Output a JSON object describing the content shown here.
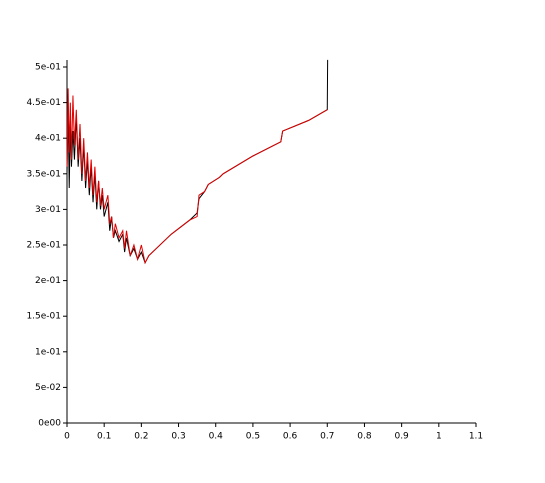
{
  "chart_data": {
    "type": "line",
    "x": [
      0,
      0.003,
      0.006,
      0.009,
      0.012,
      0.016,
      0.02,
      0.025,
      0.03,
      0.035,
      0.04,
      0.045,
      0.05,
      0.055,
      0.06,
      0.065,
      0.07,
      0.075,
      0.08,
      0.085,
      0.09,
      0.095,
      0.1,
      0.11,
      0.115,
      0.12,
      0.125,
      0.13,
      0.14,
      0.15,
      0.155,
      0.16,
      0.17,
      0.18,
      0.19,
      0.2,
      0.21,
      0.22,
      0.24,
      0.28,
      0.33,
      0.35,
      0.355,
      0.37,
      0.38,
      0.41,
      0.42,
      0.5,
      0.575,
      0.58,
      0.65,
      0.7,
      0.701
    ],
    "series": [
      {
        "color": "#000000",
        "values": [
          0.35,
          0.44,
          0.33,
          0.42,
          0.36,
          0.41,
          0.37,
          0.43,
          0.36,
          0.4,
          0.34,
          0.39,
          0.33,
          0.37,
          0.32,
          0.36,
          0.31,
          0.35,
          0.3,
          0.34,
          0.3,
          0.32,
          0.29,
          0.31,
          0.27,
          0.29,
          0.26,
          0.27,
          0.255,
          0.265,
          0.24,
          0.26,
          0.235,
          0.245,
          0.23,
          0.24,
          0.225,
          0.235,
          0.245,
          0.265,
          0.285,
          0.295,
          0.315,
          0.325,
          0.335,
          0.345,
          0.35,
          0.375,
          0.395,
          0.41,
          0.425,
          0.44,
          0.51
        ]
      },
      {
        "color": "#e00000",
        "values": [
          0.36,
          0.47,
          0.38,
          0.45,
          0.37,
          0.46,
          0.39,
          0.44,
          0.37,
          0.42,
          0.35,
          0.4,
          0.34,
          0.38,
          0.33,
          0.37,
          0.32,
          0.36,
          0.31,
          0.34,
          0.305,
          0.33,
          0.3,
          0.32,
          0.28,
          0.29,
          0.26,
          0.28,
          0.26,
          0.27,
          0.245,
          0.27,
          0.235,
          0.25,
          0.23,
          0.25,
          0.225,
          0.235,
          0.245,
          0.265,
          0.285,
          0.29,
          0.32,
          0.325,
          0.335,
          0.345,
          0.35,
          0.375,
          0.395,
          0.41,
          0.425,
          0.44,
          null
        ]
      }
    ],
    "xlim": [
      0,
      1.1
    ],
    "xticks": [
      0,
      0.1,
      0.2,
      0.3,
      0.4,
      0.5,
      0.6,
      0.7,
      0.8,
      0.9,
      1,
      1.1
    ],
    "ylim": [
      0,
      0.5
    ],
    "yticks": [
      {
        "value": 0,
        "label": "0e00"
      },
      {
        "value": 0.05,
        "label": "5e-02"
      },
      {
        "value": 0.1,
        "label": "1e-01"
      },
      {
        "value": 0.15,
        "label": "1.5e-01"
      },
      {
        "value": 0.2,
        "label": "2e-01"
      },
      {
        "value": 0.25,
        "label": "2.5e-01"
      },
      {
        "value": 0.3,
        "label": "3e-01"
      },
      {
        "value": 0.35,
        "label": "3.5e-01"
      },
      {
        "value": 0.4,
        "label": "4e-01"
      },
      {
        "value": 0.45,
        "label": "4.5e-01"
      },
      {
        "value": 0.5,
        "label": "5e-01"
      }
    ],
    "grid": false
  }
}
